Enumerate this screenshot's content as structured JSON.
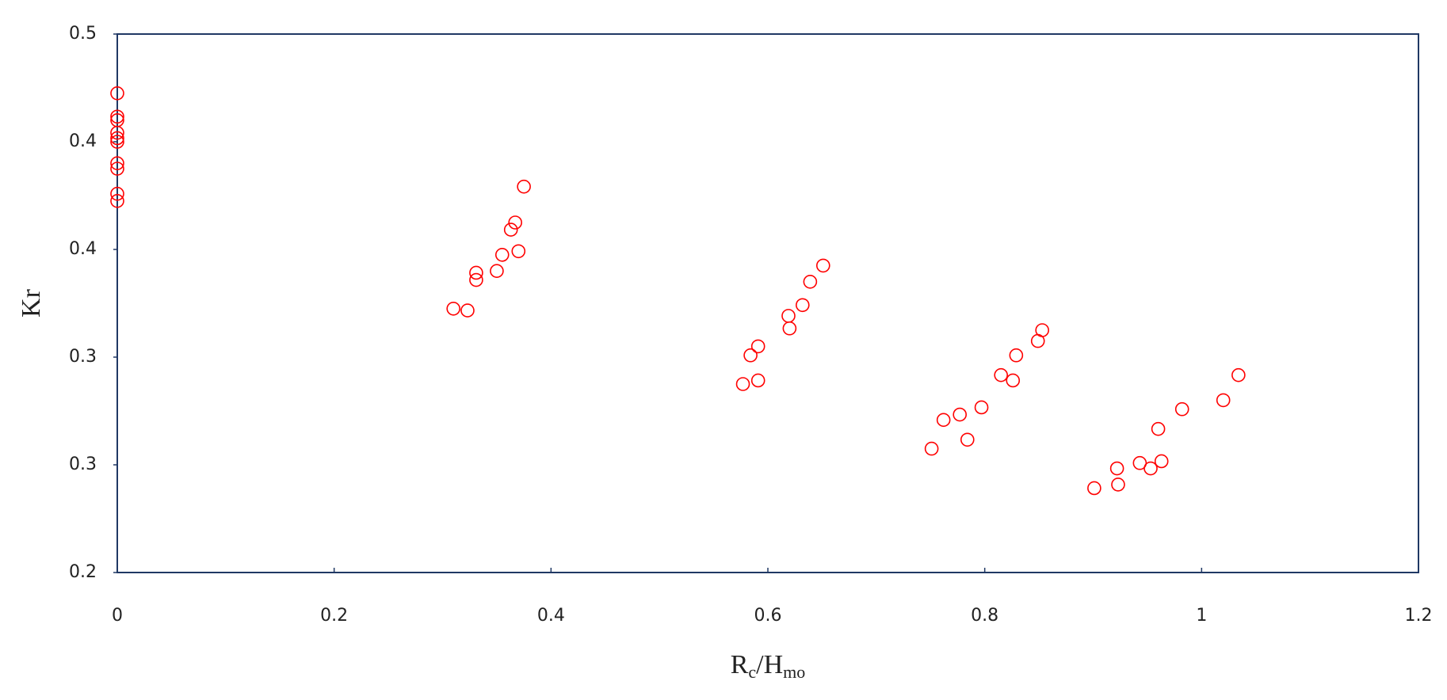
{
  "chart_data": {
    "type": "scatter",
    "x_label": [
      "R",
      "c",
      "/H",
      "mo"
    ],
    "y_label": "Kr",
    "xlim": [
      0,
      1.2
    ],
    "ylim": [
      0.2,
      0.5
    ],
    "xticks": [
      0,
      0.2,
      0.4,
      0.6,
      0.8,
      1,
      1.2
    ],
    "yticks": [
      {
        "value": 0.2,
        "label": "0.2"
      },
      {
        "value": 0.26,
        "label": "0.3"
      },
      {
        "value": 0.32,
        "label": "0.3"
      },
      {
        "value": 0.38,
        "label": "0.4"
      },
      {
        "value": 0.44,
        "label": "0.4"
      },
      {
        "value": 0.5,
        "label": "0.5"
      }
    ],
    "grid": false,
    "color": "#ff0000",
    "x": [
      0,
      0,
      0,
      0,
      0,
      0,
      0,
      0,
      0,
      0,
      0.31,
      0.323,
      0.331,
      0.331,
      0.35,
      0.355,
      0.363,
      0.367,
      0.37,
      0.375,
      0.577,
      0.591,
      0.584,
      0.591,
      0.619,
      0.62,
      0.632,
      0.639,
      0.651,
      0.751,
      0.762,
      0.777,
      0.784,
      0.797,
      0.815,
      0.826,
      0.829,
      0.849,
      0.853,
      0.901,
      0.922,
      0.923,
      0.943,
      0.953,
      0.963,
      0.96,
      0.982,
      1.02,
      1.034
    ],
    "values": [
      0.467,
      0.454,
      0.452,
      0.445,
      0.442,
      0.44,
      0.428,
      0.425,
      0.411,
      0.407,
      0.347,
      0.346,
      0.367,
      0.363,
      0.368,
      0.377,
      0.391,
      0.395,
      0.379,
      0.415,
      0.305,
      0.307,
      0.321,
      0.326,
      0.343,
      0.336,
      0.349,
      0.362,
      0.371,
      0.269,
      0.285,
      0.288,
      0.274,
      0.292,
      0.31,
      0.307,
      0.321,
      0.329,
      0.335,
      0.247,
      0.258,
      0.249,
      0.261,
      0.258,
      0.262,
      0.28,
      0.291,
      0.296,
      0.31
    ]
  }
}
